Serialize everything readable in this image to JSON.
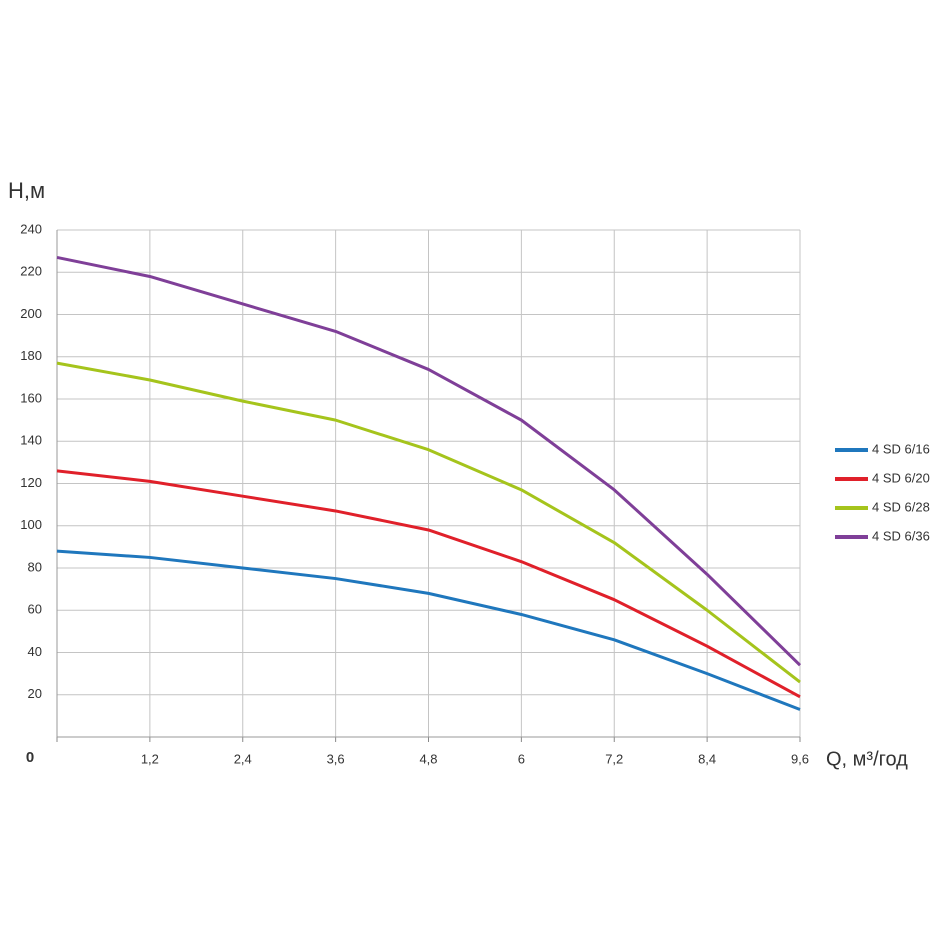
{
  "chart_data": {
    "type": "line",
    "y_label": "H,м",
    "x_label": "Q, м³/год",
    "x": [
      0,
      1.2,
      2.4,
      3.6,
      4.8,
      6,
      7.2,
      8.4,
      9.6
    ],
    "series": [
      {
        "name": "4 SD 6/16",
        "color": "#1f77bd",
        "values": [
          88,
          85,
          80,
          75,
          68,
          58,
          46,
          30,
          13
        ]
      },
      {
        "name": "4 SD 6/20",
        "color": "#e0202a",
        "values": [
          126,
          121,
          114,
          107,
          98,
          83,
          65,
          43,
          19
        ]
      },
      {
        "name": "4 SD 6/28",
        "color": "#a5c41c",
        "values": [
          177,
          169,
          159,
          150,
          136,
          117,
          92,
          60,
          26
        ]
      },
      {
        "name": "4 SD 6/36",
        "color": "#7f3f98",
        "values": [
          227,
          218,
          205,
          192,
          174,
          150,
          117,
          77,
          34
        ]
      }
    ],
    "xlim": [
      0,
      9.6
    ],
    "xticks": [
      0,
      {
        "value": 1.2,
        "label": "1,2"
      },
      {
        "value": 2.4,
        "label": "2,4"
      },
      {
        "value": 3.6,
        "label": "3,6"
      },
      {
        "value": 4.8,
        "label": "4,8"
      },
      6,
      {
        "value": 7.2,
        "label": "7,2"
      },
      {
        "value": 8.4,
        "label": "8,4"
      },
      {
        "value": 9.6,
        "label": "9,6"
      }
    ],
    "ylim": [
      0,
      240
    ],
    "yticks": [
      20,
      40,
      60,
      80,
      100,
      120,
      140,
      160,
      180,
      200,
      220,
      240
    ],
    "grid": true,
    "legend": "right"
  }
}
